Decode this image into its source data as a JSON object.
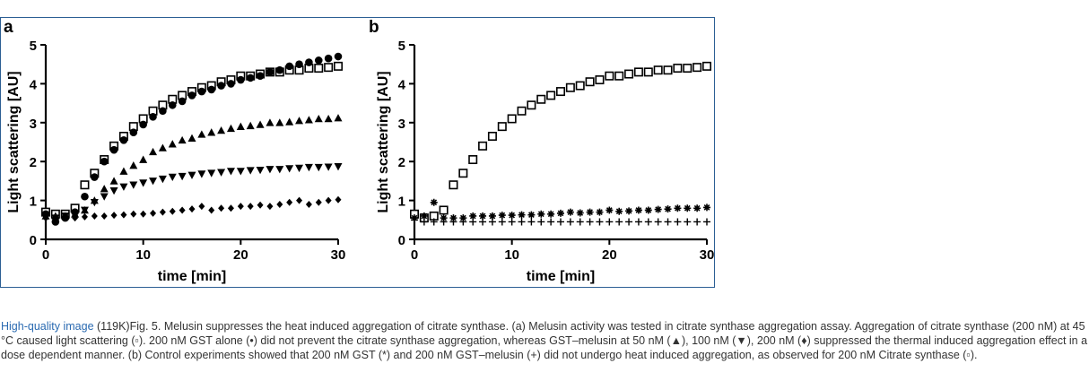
{
  "caption": {
    "link_text": "High-quality image",
    "size_text": " (119K)",
    "text": "Fig. 5. Melusin suppresses the heat induced aggregation of citrate synthase. (a) Melusin activity was tested in citrate synthase aggregation assay. Aggregation of citrate synthase (200 nM) at 45 °C caused light scattering (▫). 200 nM GST alone (•) did not prevent the citrate synthase aggregation, whereas GST–melusin at 50 nM (▲), 100 nM (▼), 200 nM (♦) suppressed the thermal induced aggregation effect in a dose dependent manner. (b) Control experiments showed that 200 nM GST (*) and 200 nM GST–melusin (+) did not undergo heat induced aggregation, as observed for 200 nM Citrate synthase (▫)."
  },
  "chart_data": [
    {
      "panel_label": "a",
      "type": "scatter",
      "xlabel": "time [min]",
      "ylabel": "Light scattering [AU]",
      "xlim": [
        0,
        30
      ],
      "ylim": [
        0,
        5
      ],
      "xticks": [
        0,
        10,
        20,
        30
      ],
      "yticks": [
        0,
        1,
        2,
        3,
        4,
        5
      ],
      "series": [
        {
          "marker": "square",
          "x": [
            0,
            1,
            2,
            3,
            4,
            5,
            6,
            7,
            8,
            9,
            10,
            11,
            12,
            13,
            14,
            15,
            16,
            17,
            18,
            19,
            20,
            21,
            22,
            23,
            24,
            25,
            26,
            27,
            28,
            29,
            30
          ],
          "y": [
            0.7,
            0.65,
            0.65,
            0.8,
            1.4,
            1.7,
            2.05,
            2.4,
            2.65,
            2.9,
            3.1,
            3.3,
            3.45,
            3.6,
            3.7,
            3.8,
            3.9,
            3.95,
            4.05,
            4.1,
            4.2,
            4.2,
            4.25,
            4.3,
            4.3,
            4.35,
            4.35,
            4.4,
            4.4,
            4.42,
            4.45
          ]
        },
        {
          "marker": "circle",
          "x": [
            0,
            1,
            2,
            3,
            4,
            5,
            6,
            7,
            8,
            9,
            10,
            11,
            12,
            13,
            14,
            15,
            16,
            17,
            18,
            19,
            20,
            21,
            22,
            23,
            24,
            25,
            26,
            27,
            28,
            29,
            30
          ],
          "y": [
            0.65,
            0.45,
            0.55,
            0.7,
            1.1,
            1.6,
            2.0,
            2.3,
            2.55,
            2.75,
            2.95,
            3.15,
            3.3,
            3.45,
            3.55,
            3.7,
            3.8,
            3.85,
            3.95,
            4.0,
            4.1,
            4.15,
            4.2,
            4.3,
            4.35,
            4.45,
            4.5,
            4.55,
            4.6,
            4.65,
            4.7
          ]
        },
        {
          "marker": "triangle-up",
          "x": [
            0,
            1,
            2,
            3,
            4,
            5,
            6,
            7,
            8,
            9,
            10,
            11,
            12,
            13,
            14,
            15,
            16,
            17,
            18,
            19,
            20,
            21,
            22,
            23,
            24,
            25,
            26,
            27,
            28,
            29,
            30
          ],
          "y": [
            0.6,
            0.6,
            0.6,
            0.65,
            0.75,
            1.0,
            1.3,
            1.5,
            1.75,
            1.9,
            2.05,
            2.25,
            2.35,
            2.45,
            2.55,
            2.6,
            2.7,
            2.75,
            2.8,
            2.85,
            2.9,
            2.92,
            2.95,
            3.0,
            3.0,
            3.02,
            3.05,
            3.07,
            3.1,
            3.1,
            3.12
          ]
        },
        {
          "marker": "triangle-down",
          "x": [
            0,
            1,
            2,
            3,
            4,
            5,
            6,
            7,
            8,
            9,
            10,
            11,
            12,
            13,
            14,
            15,
            16,
            17,
            18,
            19,
            20,
            21,
            22,
            23,
            24,
            25,
            26,
            27,
            28,
            29,
            30
          ],
          "y": [
            0.6,
            0.55,
            0.6,
            0.65,
            0.75,
            0.95,
            1.1,
            1.25,
            1.35,
            1.4,
            1.45,
            1.5,
            1.55,
            1.6,
            1.62,
            1.65,
            1.68,
            1.7,
            1.72,
            1.75,
            1.75,
            1.77,
            1.78,
            1.8,
            1.8,
            1.82,
            1.83,
            1.85,
            1.85,
            1.86,
            1.87
          ]
        },
        {
          "marker": "diamond",
          "x": [
            0,
            1,
            2,
            3,
            4,
            5,
            6,
            7,
            8,
            9,
            10,
            11,
            12,
            13,
            14,
            15,
            16,
            17,
            18,
            19,
            20,
            21,
            22,
            23,
            24,
            25,
            26,
            27,
            28,
            29,
            30
          ],
          "y": [
            0.55,
            0.55,
            0.55,
            0.55,
            0.58,
            0.6,
            0.6,
            0.62,
            0.63,
            0.65,
            0.65,
            0.67,
            0.7,
            0.72,
            0.75,
            0.78,
            0.85,
            0.75,
            0.8,
            0.8,
            0.85,
            0.85,
            0.88,
            0.85,
            0.9,
            0.95,
            1.0,
            0.9,
            0.95,
            1.0,
            1.02
          ]
        }
      ]
    },
    {
      "panel_label": "b",
      "type": "scatter",
      "xlabel": "time [min]",
      "ylabel": "Light scattering [AU]",
      "xlim": [
        0,
        30
      ],
      "ylim": [
        0,
        5
      ],
      "xticks": [
        0,
        10,
        20,
        30
      ],
      "yticks": [
        0,
        1,
        2,
        3,
        4,
        5
      ],
      "series": [
        {
          "marker": "square",
          "x": [
            0,
            1,
            2,
            3,
            4,
            5,
            6,
            7,
            8,
            9,
            10,
            11,
            12,
            13,
            14,
            15,
            16,
            17,
            18,
            19,
            20,
            21,
            22,
            23,
            24,
            25,
            26,
            27,
            28,
            29,
            30
          ],
          "y": [
            0.65,
            0.55,
            0.6,
            0.75,
            1.4,
            1.7,
            2.05,
            2.4,
            2.65,
            2.9,
            3.1,
            3.3,
            3.45,
            3.6,
            3.7,
            3.8,
            3.9,
            3.95,
            4.05,
            4.1,
            4.2,
            4.2,
            4.25,
            4.3,
            4.3,
            4.35,
            4.35,
            4.4,
            4.4,
            4.42,
            4.45
          ]
        },
        {
          "marker": "asterisk",
          "x": [
            0,
            1,
            2,
            3,
            4,
            5,
            6,
            7,
            8,
            9,
            10,
            11,
            12,
            13,
            14,
            15,
            16,
            17,
            18,
            19,
            20,
            21,
            22,
            23,
            24,
            25,
            26,
            27,
            28,
            29,
            30
          ],
          "y": [
            0.55,
            0.6,
            0.95,
            0.55,
            0.55,
            0.55,
            0.6,
            0.6,
            0.6,
            0.62,
            0.62,
            0.63,
            0.63,
            0.65,
            0.65,
            0.67,
            0.7,
            0.68,
            0.7,
            0.7,
            0.75,
            0.72,
            0.73,
            0.75,
            0.75,
            0.77,
            0.78,
            0.8,
            0.8,
            0.8,
            0.82
          ]
        },
        {
          "marker": "plus",
          "x": [
            0,
            1,
            2,
            3,
            4,
            5,
            6,
            7,
            8,
            9,
            10,
            11,
            12,
            13,
            14,
            15,
            16,
            17,
            18,
            19,
            20,
            21,
            22,
            23,
            24,
            25,
            26,
            27,
            28,
            29,
            30
          ],
          "y": [
            0.5,
            0.45,
            0.45,
            0.45,
            0.45,
            0.45,
            0.45,
            0.45,
            0.45,
            0.45,
            0.45,
            0.45,
            0.45,
            0.45,
            0.45,
            0.45,
            0.45,
            0.45,
            0.45,
            0.45,
            0.45,
            0.45,
            0.45,
            0.45,
            0.45,
            0.45,
            0.45,
            0.45,
            0.45,
            0.45,
            0.45
          ]
        }
      ]
    }
  ]
}
